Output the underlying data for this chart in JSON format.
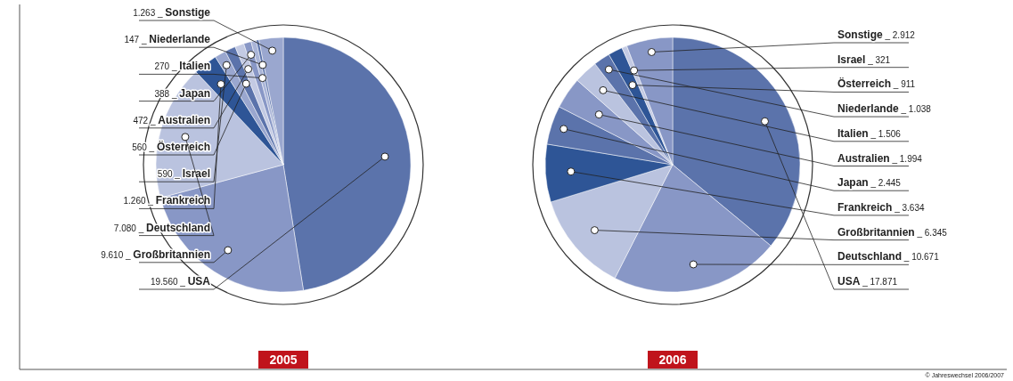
{
  "chart_data": [
    {
      "type": "pie",
      "title": "2005",
      "categories": [
        "USA",
        "Großbritannien",
        "Deutschland",
        "Frankreich",
        "Israel",
        "Österreich",
        "Australien",
        "Japan",
        "Italien",
        "Niederlande",
        "Sonstige"
      ],
      "values": [
        19560,
        9610,
        7080,
        1260,
        590,
        560,
        472,
        388,
        270,
        147,
        1263
      ],
      "value_labels": [
        "19.560 _",
        "9.610 _",
        "7.080 _",
        "1.260 _",
        "590 _",
        "560 _",
        "472 _",
        "388 _",
        "270 _",
        "147 _",
        "1.263 _"
      ],
      "colors": [
        "#5b73ab",
        "#8897c6",
        "#bac3df",
        "#2e5596",
        "#9aa7cf",
        "#5b73ab",
        "#c3cae3",
        "#8897c6",
        "#aab5d8",
        "#5b73ab",
        "#9aa7cf"
      ]
    },
    {
      "type": "pie",
      "title": "2006",
      "categories": [
        "USA",
        "Deutschland",
        "Großbritannien",
        "Frankreich",
        "Japan",
        "Australien",
        "Italien",
        "Niederlande",
        "Österreich",
        "Israel",
        "Sonstige"
      ],
      "values": [
        17871,
        10671,
        6345,
        3634,
        2445,
        1994,
        1506,
        1038,
        911,
        321,
        2912
      ],
      "value_labels": [
        "_ 17.871",
        "_ 10.671",
        "_ 6.345",
        "_ 3.634",
        "_ 2.445",
        "_ 1.994",
        "_ 1.506",
        "_ 1.038",
        "_ 911",
        "_ 321",
        "_ 2.912"
      ],
      "colors": [
        "#5b73ab",
        "#8897c6",
        "#bac3df",
        "#2e5596",
        "#5b73ab",
        "#8897c6",
        "#bac3df",
        "#5b73ab",
        "#2e5596",
        "#c3cae3",
        "#8897c6"
      ],
      "annotations": [
        "© Jahreswechsel 2006/2007"
      ]
    }
  ]
}
